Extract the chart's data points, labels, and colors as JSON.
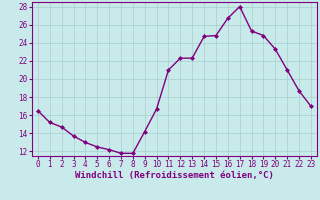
{
  "x": [
    0,
    1,
    2,
    3,
    4,
    5,
    6,
    7,
    8,
    9,
    10,
    11,
    12,
    13,
    14,
    15,
    16,
    17,
    18,
    19,
    20,
    21,
    22,
    23
  ],
  "y": [
    16.5,
    15.2,
    14.7,
    13.7,
    13.0,
    12.5,
    12.2,
    11.8,
    11.8,
    14.2,
    16.7,
    21.0,
    22.3,
    22.3,
    24.7,
    24.8,
    26.7,
    28.0,
    25.3,
    24.8,
    23.3,
    21.0,
    18.7,
    17.0
  ],
  "line_color": "#800080",
  "marker": "D",
  "marker_size": 2,
  "bg_color": "#c8eaea",
  "grid_color": "#a8cece",
  "xlabel": "Windchill (Refroidissement éolien,°C)",
  "xlim": [
    -0.5,
    23.5
  ],
  "ylim": [
    11.5,
    28.5
  ],
  "yticks": [
    12,
    14,
    16,
    18,
    20,
    22,
    24,
    26,
    28
  ],
  "xticks": [
    0,
    1,
    2,
    3,
    4,
    5,
    6,
    7,
    8,
    9,
    10,
    11,
    12,
    13,
    14,
    15,
    16,
    17,
    18,
    19,
    20,
    21,
    22,
    23
  ],
  "tick_label_fontsize": 5.5,
  "xlabel_fontsize": 6.5,
  "line_width": 1.0,
  "axis_color": "#800080"
}
